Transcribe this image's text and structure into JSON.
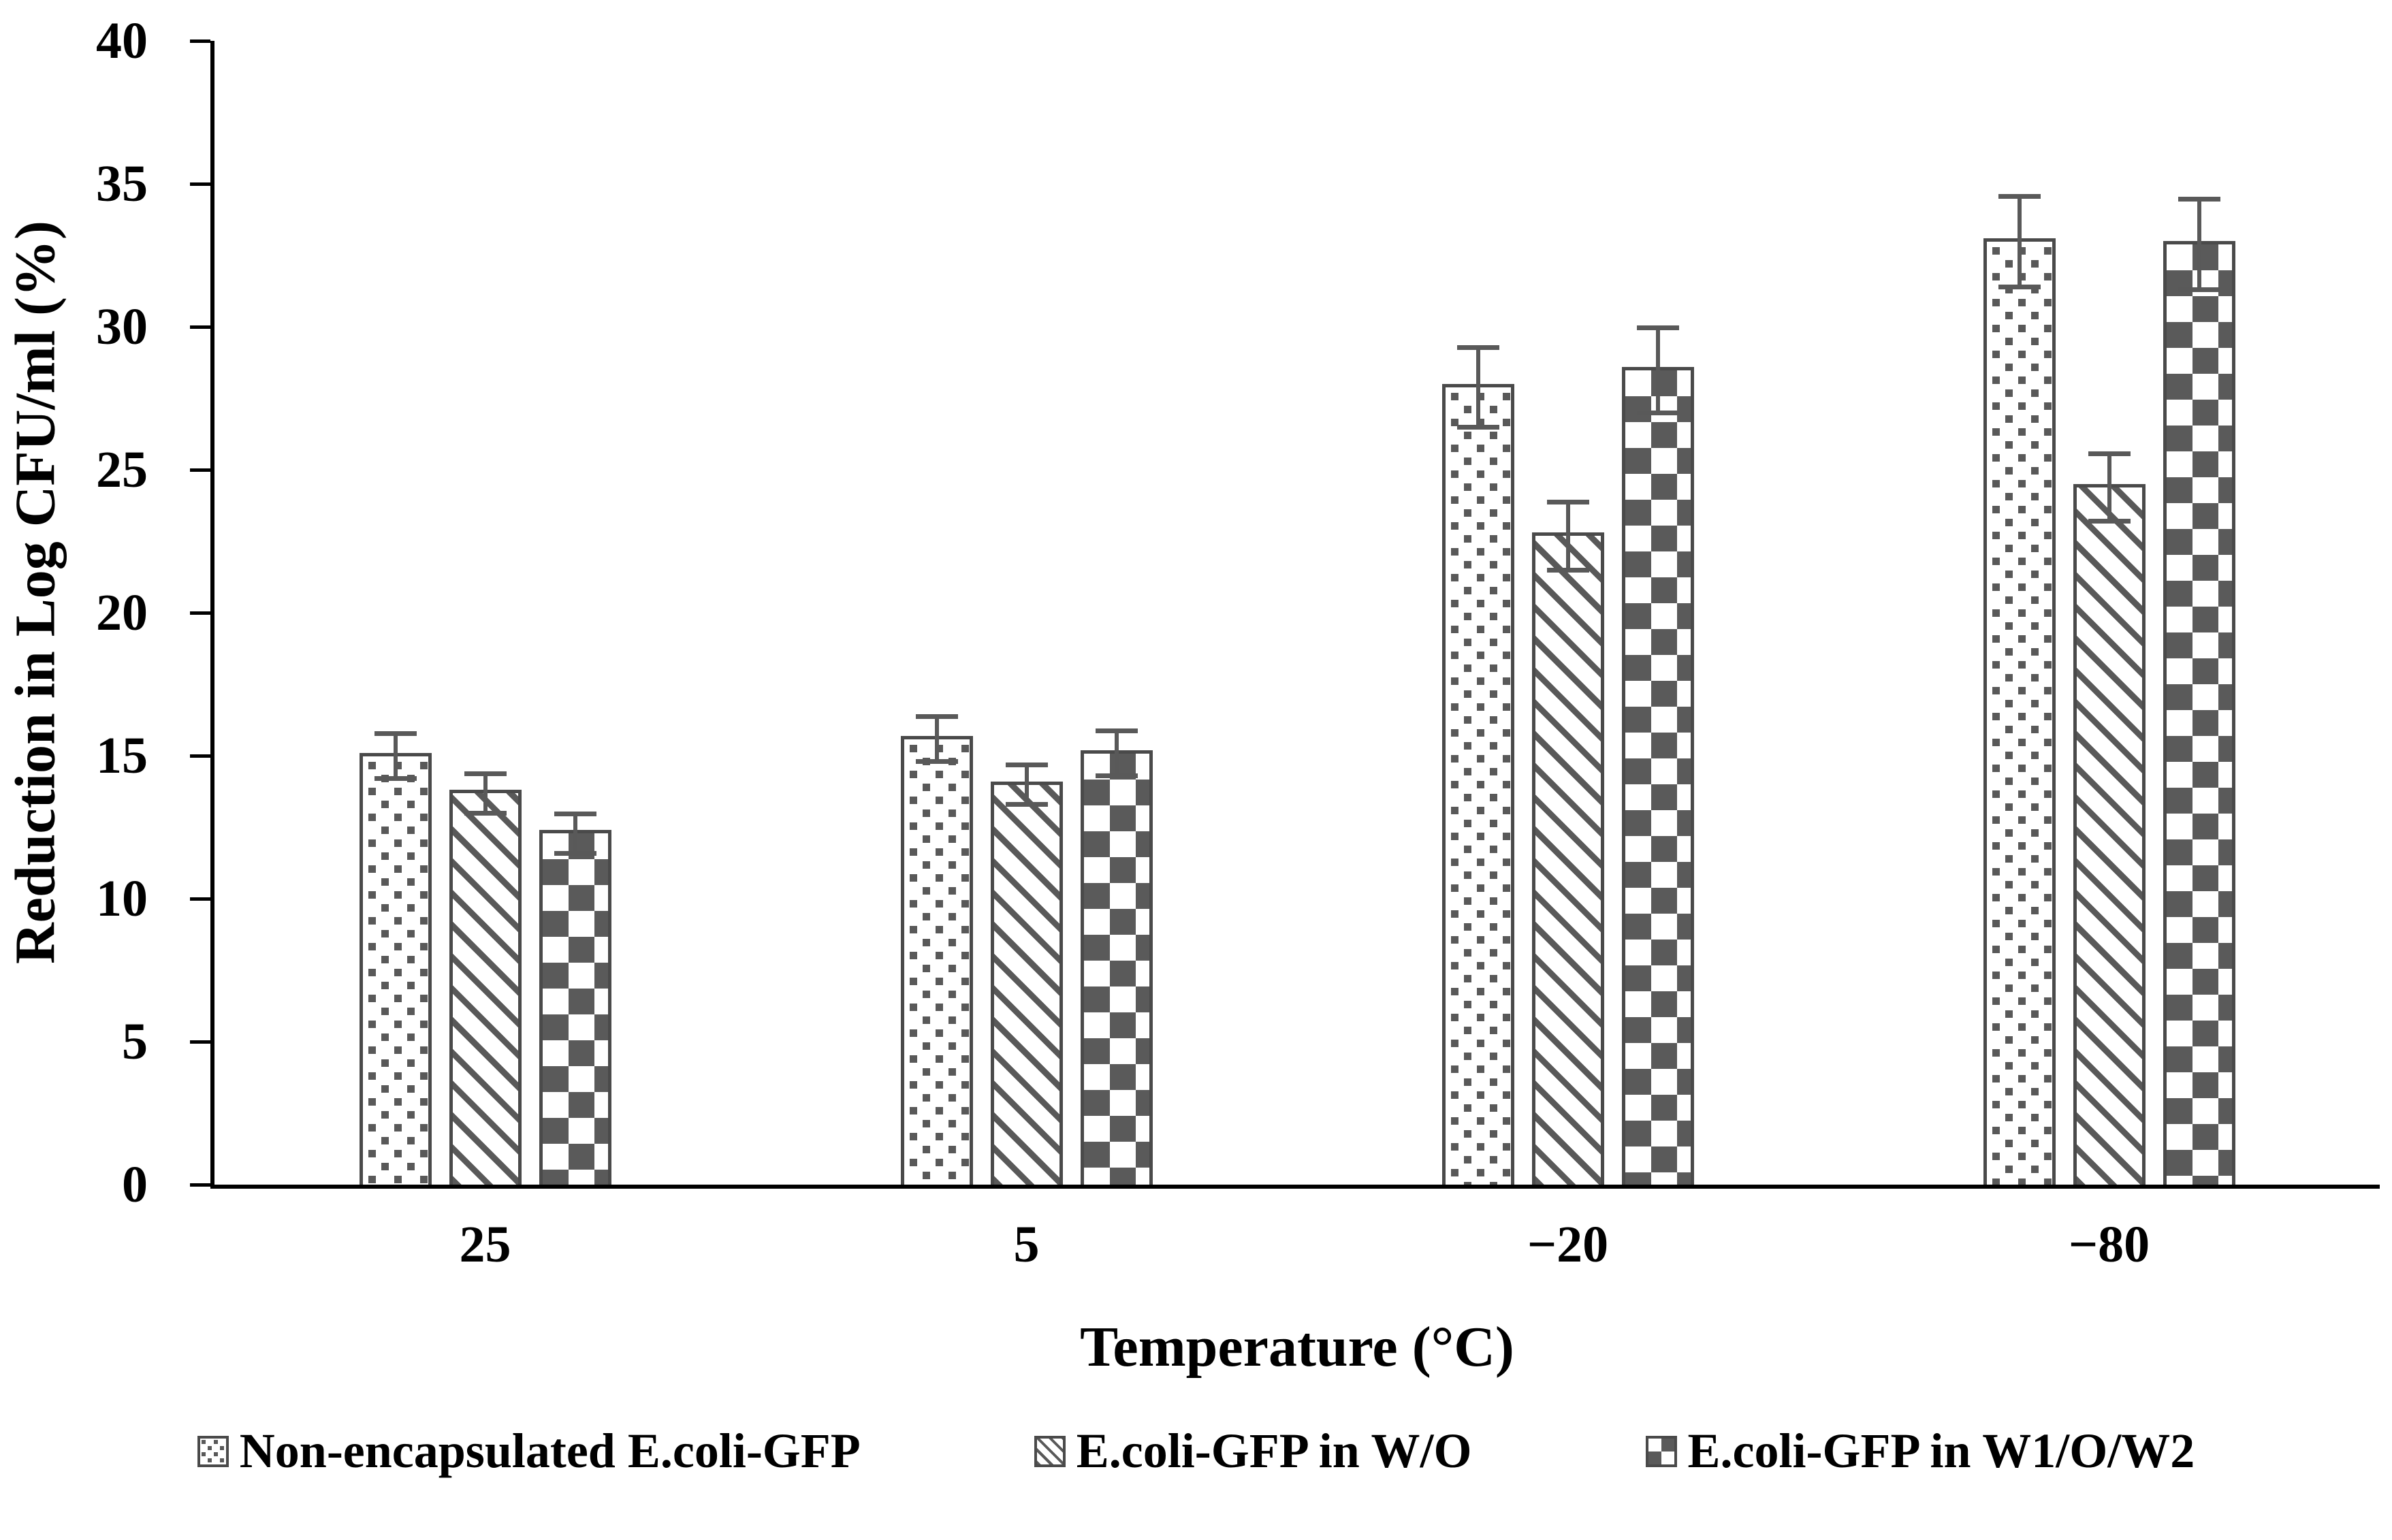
{
  "colors": {
    "pattern_gray": "#595959",
    "checker_gray": "#5a5a5a",
    "bar_border": "#4a4a4a",
    "axis_black": "#000000",
    "background": "#ffffff"
  },
  "chart_data": {
    "type": "bar",
    "title": "",
    "xlabel": "Temperature (°C)",
    "ylabel": "Reduction in Log CFU/ml (%)",
    "ylim": [
      0,
      40
    ],
    "yticks": [
      0,
      5,
      10,
      15,
      20,
      25,
      30,
      35,
      40
    ],
    "grid": false,
    "legend_position": "bottom",
    "categories": [
      "25",
      "5",
      "−20",
      "−80"
    ],
    "series": [
      {
        "name": "Non-encapsulated E.coli-GFP",
        "pattern": "dots",
        "values": [
          15.1,
          15.7,
          28.0,
          33.1
        ],
        "errors": [
          0.8,
          0.8,
          1.4,
          1.6
        ]
      },
      {
        "name": "E.coli-GFP in W/O",
        "pattern": "diag",
        "values": [
          13.8,
          14.1,
          22.8,
          24.5
        ],
        "errors": [
          0.7,
          0.7,
          1.2,
          1.2
        ]
      },
      {
        "name": "E.coli-GFP in W1/O/W2",
        "pattern": "checker",
        "values": [
          12.4,
          15.2,
          28.6,
          33.0
        ],
        "errors": [
          0.7,
          0.8,
          1.5,
          1.6
        ]
      }
    ]
  }
}
